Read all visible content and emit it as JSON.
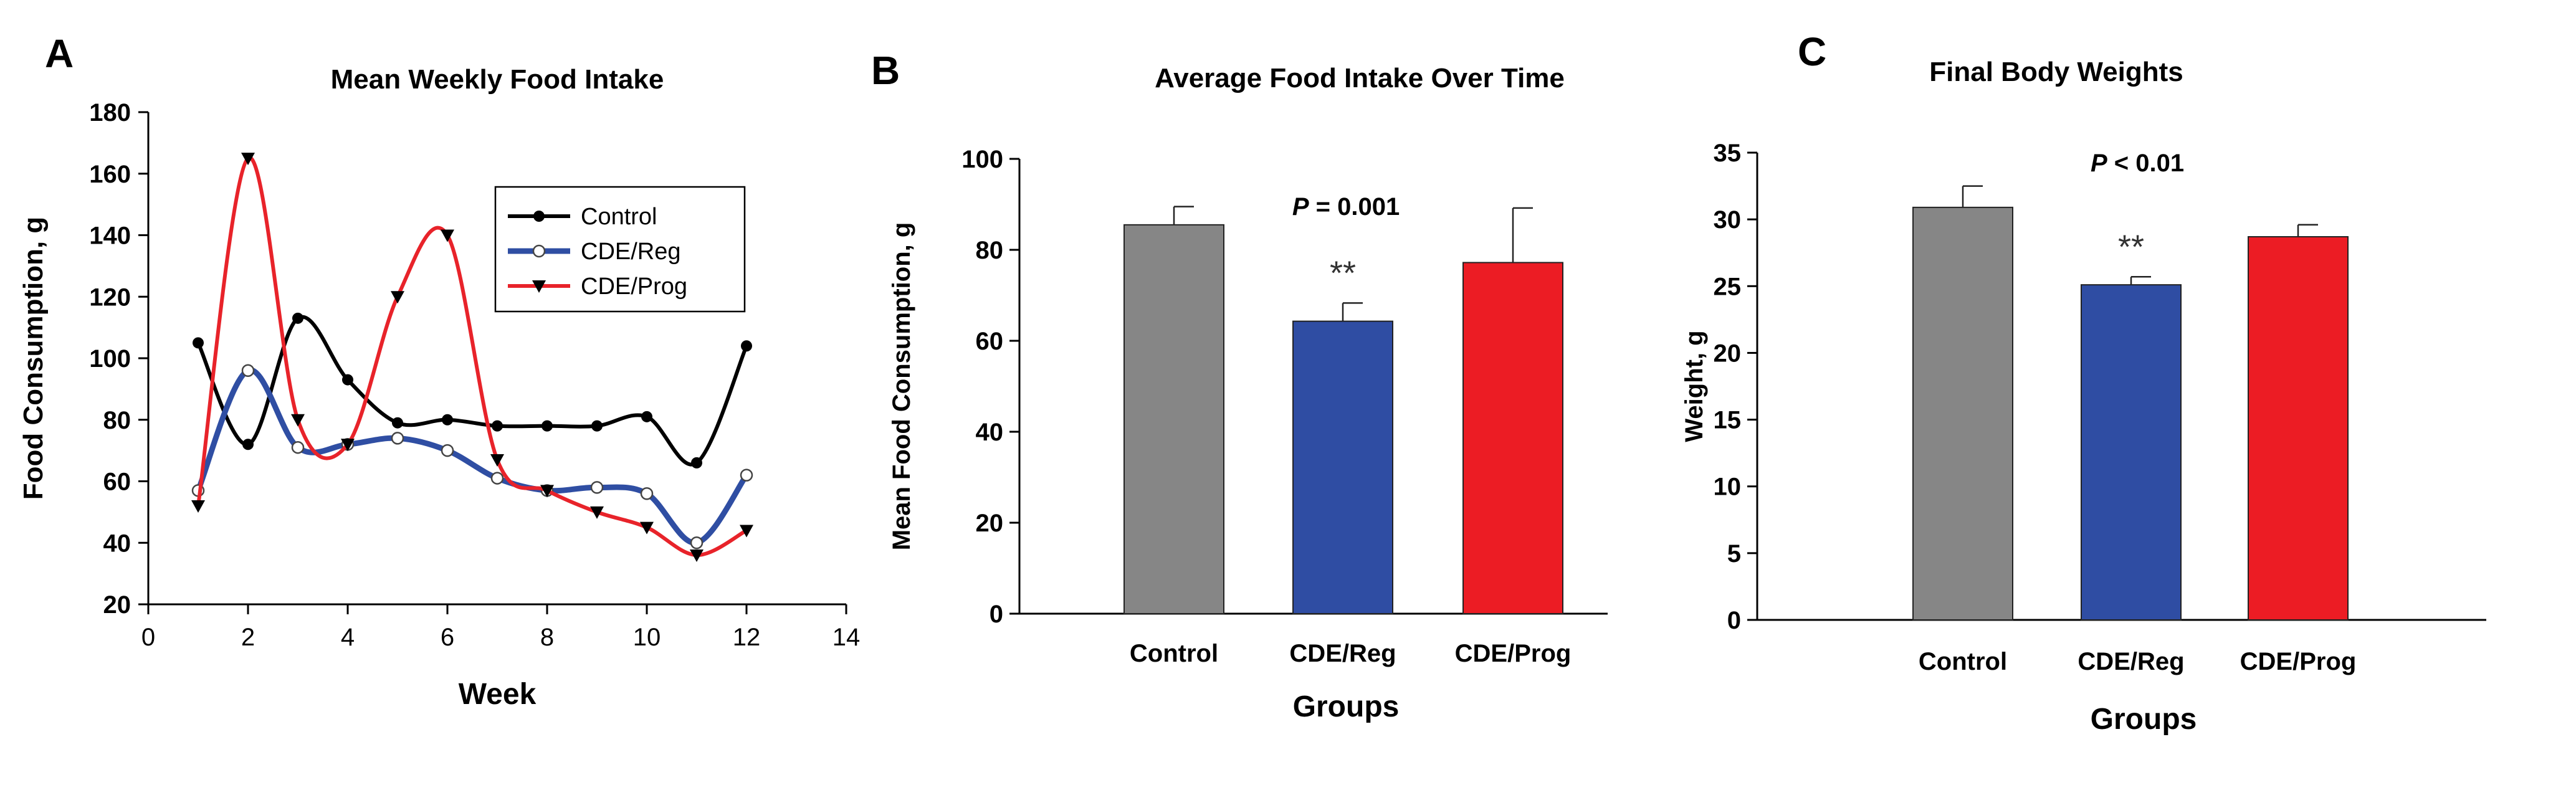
{
  "panels": [
    {
      "letter": "A"
    },
    {
      "letter": "B"
    },
    {
      "letter": "C"
    }
  ],
  "colors": {
    "control": "#000000",
    "cde_reg": "#2f4ea3",
    "cde_prog": "#e8232a",
    "bar_control": "#868686",
    "bar_reg": "#2f4da3",
    "bar_prog": "#ec1c24"
  },
  "chart_data": [
    {
      "type": "line",
      "panel": "A",
      "title": "Mean Weekly Food Intake",
      "xlabel": "Week",
      "ylabel": "Food Consumption, g",
      "xlim": [
        0,
        14
      ],
      "ylim": [
        20,
        180
      ],
      "xticks": [
        0,
        2,
        4,
        6,
        8,
        10,
        12,
        14
      ],
      "yticks": [
        20,
        40,
        60,
        80,
        100,
        120,
        140,
        160,
        180
      ],
      "grid": false,
      "legend_position": "top-right",
      "x": [
        1,
        2,
        3,
        4,
        5,
        6,
        7,
        8,
        9,
        10,
        11,
        12
      ],
      "series": [
        {
          "name": "Control",
          "marker": "filled-circle",
          "color": "#000000",
          "values": [
            105,
            72,
            113,
            93,
            79,
            80,
            78,
            78,
            78,
            81,
            66,
            104
          ]
        },
        {
          "name": "CDE/Reg",
          "marker": "open-circle",
          "color": "#2f4ea3",
          "values": [
            57,
            96,
            71,
            72,
            74,
            70,
            61,
            57,
            58,
            56,
            40,
            62
          ]
        },
        {
          "name": "CDE/Prog",
          "marker": "filled-triangle-down",
          "color": "#e8232a",
          "values": [
            52,
            165,
            80,
            72,
            120,
            140,
            67,
            57,
            50,
            45,
            36,
            44
          ]
        }
      ]
    },
    {
      "type": "bar",
      "panel": "B",
      "title": "Average Food Intake Over Time",
      "xlabel": "Groups",
      "ylabel": "Mean Food Consumption, g",
      "ylim": [
        0,
        100
      ],
      "yticks": [
        0,
        20,
        40,
        60,
        80,
        100
      ],
      "grid": false,
      "categories": [
        "Control",
        "CDE/Reg",
        "CDE/Prog"
      ],
      "values": [
        85.5,
        64.3,
        77.2
      ],
      "error": [
        4,
        4,
        12
      ],
      "bar_colors": [
        "#868686",
        "#2f4da3",
        "#ec1c24"
      ],
      "significance_marks": [
        "",
        "**",
        ""
      ],
      "annotation": {
        "italic": "P",
        "rest": " = 0.001"
      }
    },
    {
      "type": "bar",
      "panel": "C",
      "title": "Final Body Weights",
      "xlabel": "Groups",
      "ylabel": "Weight, g",
      "ylim": [
        0,
        35
      ],
      "yticks": [
        0,
        5,
        10,
        15,
        20,
        25,
        30,
        35
      ],
      "grid": false,
      "categories": [
        "Control",
        "CDE/Reg",
        "CDE/Prog"
      ],
      "values": [
        30.9,
        25.1,
        28.7
      ],
      "error": [
        1.6,
        0.6,
        0.9
      ],
      "bar_colors": [
        "#868686",
        "#2f4da3",
        "#ec1c24"
      ],
      "significance_marks": [
        "",
        "**",
        ""
      ],
      "annotation": {
        "italic": "P",
        "rest": " < 0.01"
      }
    }
  ]
}
